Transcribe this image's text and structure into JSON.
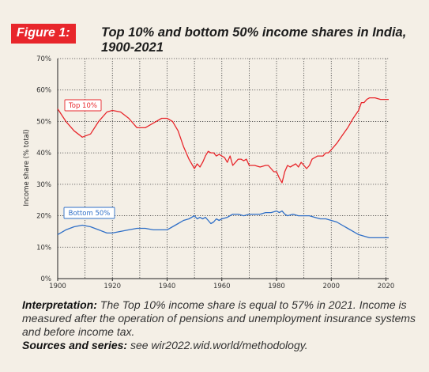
{
  "figure": {
    "badge": "Figure 1:",
    "title": "Top 10% and bottom 50% income shares in India, 1900-2021"
  },
  "caption": {
    "interp_label": "Interpretation:",
    "interp_text": " The Top 10% income share is equal to 57% in 2021. Income is measured after the operation of pensions and unemployment insurance systems and before income tax.",
    "sources_label": "Sources and series:",
    "sources_text": " see wir2022.wid.world/methodology."
  },
  "colors": {
    "top10": "#e8262b",
    "bottom50": "#2f6fc7",
    "background": "#f4efe6"
  },
  "chart_data": {
    "type": "line",
    "ylabel": "Income share (% total)",
    "xlim": [
      1900,
      2021
    ],
    "ylim": [
      0,
      0.7
    ],
    "x_ticks": [
      "1900",
      "1920",
      "1940",
      "1960",
      "1980",
      "2000",
      "2020"
    ],
    "y_ticks": [
      "0%",
      "10%",
      "20%",
      "30%",
      "40%",
      "50%",
      "60%",
      "70%"
    ],
    "grid": true,
    "series": [
      {
        "name": "Top 10%",
        "color": "#e8262b",
        "points": [
          [
            1900,
            0.54
          ],
          [
            1903,
            0.5
          ],
          [
            1906,
            0.47
          ],
          [
            1909,
            0.45
          ],
          [
            1912,
            0.46
          ],
          [
            1915,
            0.5
          ],
          [
            1918,
            0.53
          ],
          [
            1920,
            0.535
          ],
          [
            1923,
            0.53
          ],
          [
            1926,
            0.51
          ],
          [
            1929,
            0.48
          ],
          [
            1932,
            0.48
          ],
          [
            1935,
            0.495
          ],
          [
            1938,
            0.51
          ],
          [
            1940,
            0.51
          ],
          [
            1942,
            0.5
          ],
          [
            1944,
            0.47
          ],
          [
            1946,
            0.42
          ],
          [
            1948,
            0.38
          ],
          [
            1950,
            0.35
          ],
          [
            1951,
            0.365
          ],
          [
            1952,
            0.355
          ],
          [
            1953,
            0.37
          ],
          [
            1954,
            0.39
          ],
          [
            1955,
            0.405
          ],
          [
            1956,
            0.4
          ],
          [
            1957,
            0.4
          ],
          [
            1958,
            0.39
          ],
          [
            1959,
            0.395
          ],
          [
            1960,
            0.39
          ],
          [
            1961,
            0.385
          ],
          [
            1962,
            0.37
          ],
          [
            1963,
            0.39
          ],
          [
            1964,
            0.36
          ],
          [
            1965,
            0.37
          ],
          [
            1966,
            0.38
          ],
          [
            1967,
            0.38
          ],
          [
            1968,
            0.375
          ],
          [
            1969,
            0.38
          ],
          [
            1970,
            0.36
          ],
          [
            1972,
            0.36
          ],
          [
            1974,
            0.355
          ],
          [
            1976,
            0.36
          ],
          [
            1977,
            0.36
          ],
          [
            1978,
            0.35
          ],
          [
            1979,
            0.34
          ],
          [
            1980,
            0.34
          ],
          [
            1981,
            0.32
          ],
          [
            1982,
            0.305
          ],
          [
            1983,
            0.34
          ],
          [
            1984,
            0.36
          ],
          [
            1985,
            0.355
          ],
          [
            1986,
            0.36
          ],
          [
            1987,
            0.365
          ],
          [
            1988,
            0.355
          ],
          [
            1989,
            0.37
          ],
          [
            1990,
            0.36
          ],
          [
            1991,
            0.35
          ],
          [
            1992,
            0.36
          ],
          [
            1993,
            0.38
          ],
          [
            1994,
            0.385
          ],
          [
            1995,
            0.39
          ],
          [
            1996,
            0.39
          ],
          [
            1997,
            0.39
          ],
          [
            1998,
            0.4
          ],
          [
            1999,
            0.4
          ],
          [
            2000,
            0.41
          ],
          [
            2002,
            0.43
          ],
          [
            2004,
            0.455
          ],
          [
            2006,
            0.48
          ],
          [
            2008,
            0.51
          ],
          [
            2010,
            0.535
          ],
          [
            2011,
            0.56
          ],
          [
            2012,
            0.56
          ],
          [
            2013,
            0.57
          ],
          [
            2014,
            0.575
          ],
          [
            2016,
            0.575
          ],
          [
            2018,
            0.57
          ],
          [
            2021,
            0.57
          ]
        ]
      },
      {
        "name": "Bottom 50%",
        "color": "#2f6fc7",
        "points": [
          [
            1900,
            0.14
          ],
          [
            1903,
            0.155
          ],
          [
            1906,
            0.165
          ],
          [
            1909,
            0.17
          ],
          [
            1912,
            0.165
          ],
          [
            1915,
            0.155
          ],
          [
            1918,
            0.145
          ],
          [
            1920,
            0.145
          ],
          [
            1923,
            0.15
          ],
          [
            1926,
            0.155
          ],
          [
            1929,
            0.16
          ],
          [
            1932,
            0.16
          ],
          [
            1935,
            0.155
          ],
          [
            1938,
            0.155
          ],
          [
            1940,
            0.155
          ],
          [
            1942,
            0.165
          ],
          [
            1944,
            0.175
          ],
          [
            1946,
            0.185
          ],
          [
            1948,
            0.19
          ],
          [
            1950,
            0.2
          ],
          [
            1951,
            0.19
          ],
          [
            1952,
            0.195
          ],
          [
            1953,
            0.19
          ],
          [
            1954,
            0.195
          ],
          [
            1955,
            0.185
          ],
          [
            1956,
            0.175
          ],
          [
            1957,
            0.18
          ],
          [
            1958,
            0.19
          ],
          [
            1959,
            0.185
          ],
          [
            1960,
            0.19
          ],
          [
            1962,
            0.195
          ],
          [
            1963,
            0.2
          ],
          [
            1964,
            0.205
          ],
          [
            1966,
            0.205
          ],
          [
            1968,
            0.2
          ],
          [
            1970,
            0.205
          ],
          [
            1972,
            0.205
          ],
          [
            1974,
            0.205
          ],
          [
            1976,
            0.21
          ],
          [
            1978,
            0.21
          ],
          [
            1980,
            0.215
          ],
          [
            1981,
            0.21
          ],
          [
            1982,
            0.215
          ],
          [
            1983,
            0.205
          ],
          [
            1984,
            0.2
          ],
          [
            1986,
            0.205
          ],
          [
            1988,
            0.2
          ],
          [
            1990,
            0.2
          ],
          [
            1992,
            0.2
          ],
          [
            1994,
            0.195
          ],
          [
            1996,
            0.19
          ],
          [
            1998,
            0.19
          ],
          [
            2000,
            0.185
          ],
          [
            2002,
            0.18
          ],
          [
            2004,
            0.17
          ],
          [
            2006,
            0.16
          ],
          [
            2008,
            0.15
          ],
          [
            2010,
            0.14
          ],
          [
            2012,
            0.135
          ],
          [
            2014,
            0.13
          ],
          [
            2016,
            0.13
          ],
          [
            2018,
            0.13
          ],
          [
            2021,
            0.13
          ]
        ],
        "label_anchor": [
          1909,
          0.21
        ]
      }
    ]
  }
}
